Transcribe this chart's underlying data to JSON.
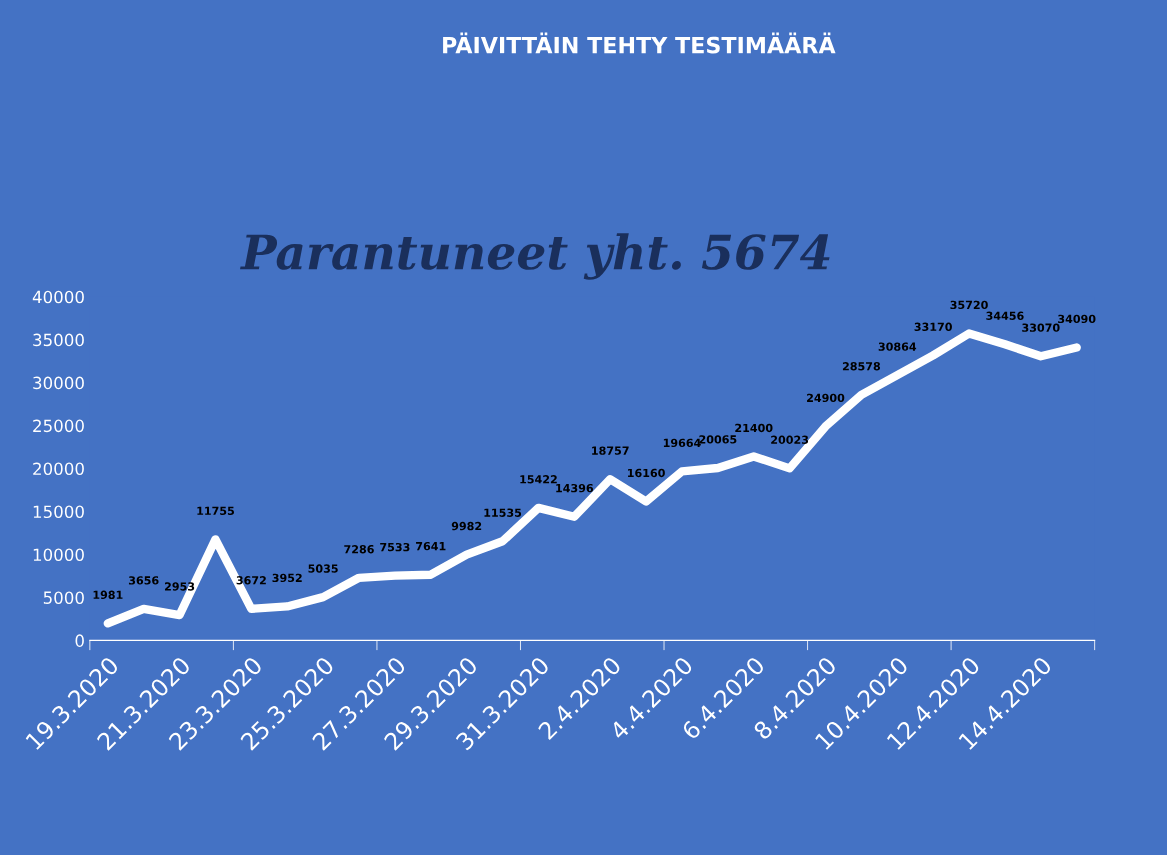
{
  "chart_data": {
    "type": "line",
    "title": "PÄIVITTÄIN TEHTY TESTIMÄÄRÄ",
    "annotations": [
      "Parantuneet yht. 5674"
    ],
    "categories": [
      "19.3.2020",
      null,
      "21.3.2020",
      null,
      "23.3.2020",
      null,
      "25.3.2020",
      null,
      "27.3.2020",
      null,
      "29.3.2020",
      null,
      "31.3.2020",
      null,
      "2.4.2020",
      null,
      "4.4.2020",
      null,
      "6.4.2020",
      null,
      "8.4.2020",
      null,
      "10.4.2020",
      null,
      "12.4.2020",
      null,
      "14.4.2020",
      null
    ],
    "series": [
      {
        "color": "#ffffff",
        "values": [
          1981,
          3656,
          2953,
          11755,
          3672,
          3952,
          5035,
          7286,
          7533,
          7641,
          9982,
          11535,
          15422,
          14396,
          18757,
          16160,
          19664,
          20065,
          21400,
          20023,
          24900,
          28578,
          30864,
          33170,
          35720,
          34456,
          33070,
          34090
        ]
      }
    ],
    "ylim": [
      0,
      40000
    ],
    "yticks": [
      0,
      5000,
      10000,
      15000,
      20000,
      25000,
      30000,
      35000,
      40000
    ],
    "data_labels": true,
    "grid": false,
    "legend": false,
    "marker": "none",
    "line_style": "solid"
  }
}
